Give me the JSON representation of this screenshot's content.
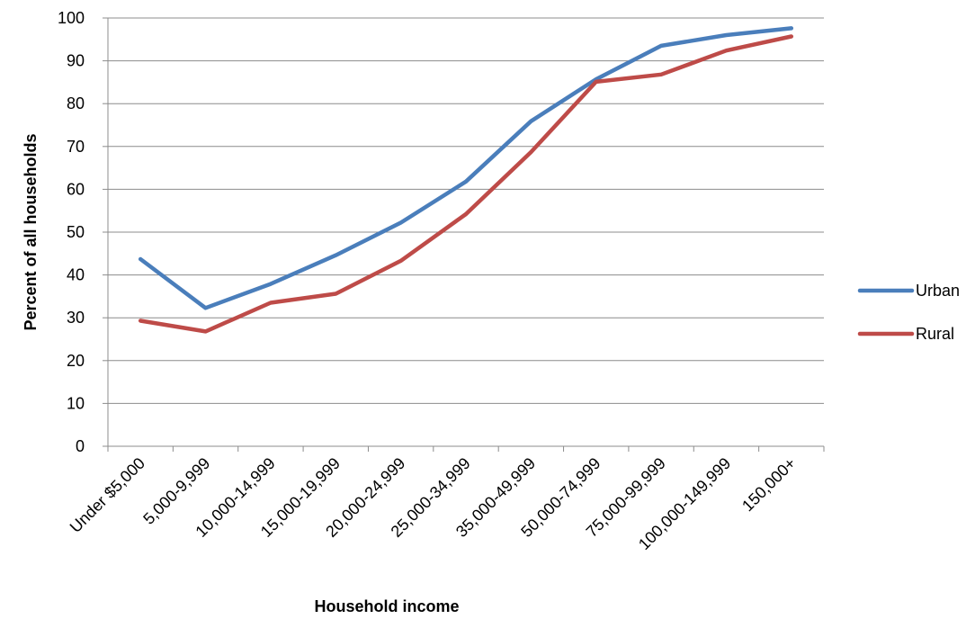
{
  "chart_data": {
    "type": "line",
    "xlabel": "Household income",
    "ylabel": "Percent of all households",
    "ylim": [
      0,
      100
    ],
    "yticks": [
      0,
      10,
      20,
      30,
      40,
      50,
      60,
      70,
      80,
      90,
      100
    ],
    "grid": "horizontal",
    "legend_position": "right",
    "categories": [
      "Under $5,000",
      "5,000-9,999",
      "10,000-14,999",
      "15,000-19,999",
      "20,000-24,999",
      "25,000-34,999",
      "35,000-49,999",
      "50,000-74,999",
      "75,000-99,999",
      "100,000-149,999",
      "150,000+"
    ],
    "series": [
      {
        "name": "Urban",
        "color": "#4a7ebb",
        "values": [
          43.7,
          32.3,
          37.9,
          44.6,
          52.2,
          61.8,
          75.9,
          85.7,
          93.5,
          96.0,
          97.6
        ]
      },
      {
        "name": "Rural",
        "color": "#be4b48",
        "values": [
          29.3,
          26.8,
          33.5,
          35.6,
          43.3,
          54.2,
          68.7,
          85.1,
          86.8,
          92.4,
          95.7
        ]
      }
    ]
  }
}
